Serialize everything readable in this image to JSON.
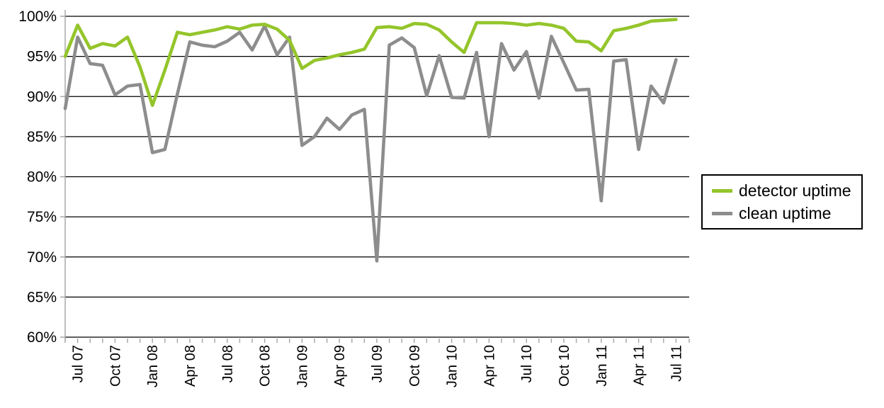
{
  "chart_data": {
    "type": "line",
    "title": "",
    "xlabel": "",
    "ylabel": "",
    "ylim": [
      60,
      100
    ],
    "ytick_step": 5,
    "ytick_labels": [
      "100%",
      "95%",
      "90%",
      "85%",
      "80%",
      "75%",
      "70%",
      "65%",
      "60%"
    ],
    "grid": "horizontal",
    "legend_position": "right",
    "x_label_start_index": 1,
    "x_label_every": 3,
    "visible_x_labels": [
      "Jul 07",
      "Oct 07",
      "Jan 08",
      "Apr 08",
      "Jul 08",
      "Oct 08",
      "Jan 09",
      "Apr 09",
      "Jul 09",
      "Oct 09",
      "Jan 10",
      "Apr 10",
      "Jul 10",
      "Oct 10",
      "Jan 11",
      "Apr 11",
      "Jul 11"
    ],
    "categories": [
      "Jun 07",
      "Jul 07",
      "Aug 07",
      "Sep 07",
      "Oct 07",
      "Nov 07",
      "Dec 07",
      "Jan 08",
      "Feb 08",
      "Mar 08",
      "Apr 08",
      "May 08",
      "Jun 08",
      "Jul 08",
      "Aug 08",
      "Sep 08",
      "Oct 08",
      "Nov 08",
      "Dec 08",
      "Jan 09",
      "Feb 09",
      "Mar 09",
      "Apr 09",
      "May 09",
      "Jun 09",
      "Jul 09",
      "Aug 09",
      "Sep 09",
      "Oct 09",
      "Nov 09",
      "Dec 09",
      "Jan 10",
      "Feb 10",
      "Mar 10",
      "Apr 10",
      "May 10",
      "Jun 10",
      "Jul 10",
      "Aug 10",
      "Sep 10",
      "Oct 10",
      "Nov 10",
      "Dec 10",
      "Jan 11",
      "Feb 11",
      "Mar 11",
      "Apr 11",
      "May 11",
      "Jun 11",
      "Jul 11"
    ],
    "series": [
      {
        "name": "clean uptime",
        "color": "#8d8d8d",
        "values": [
          88.5,
          97.4,
          94.1,
          93.9,
          90.2,
          91.3,
          91.5,
          83.0,
          83.4,
          90.3,
          96.8,
          96.4,
          96.2,
          96.9,
          98.0,
          95.8,
          98.8,
          95.2,
          97.4,
          83.9,
          85.0,
          87.3,
          85.9,
          87.7,
          88.4,
          69.5,
          96.4,
          97.3,
          96.1,
          90.1,
          95.1,
          89.9,
          89.8,
          95.5,
          85.0,
          96.6,
          93.3,
          95.6,
          89.8,
          97.5,
          94.2,
          90.8,
          90.9,
          77.0,
          94.4,
          94.6,
          83.4,
          91.3,
          89.2,
          94.6
        ]
      },
      {
        "name": "detector uptime",
        "color": "#94c52b",
        "values": [
          95.0,
          98.9,
          96.0,
          96.6,
          96.3,
          97.4,
          93.7,
          88.9,
          93.3,
          98.0,
          97.7,
          98.0,
          98.3,
          98.7,
          98.4,
          98.9,
          99.0,
          98.4,
          97.0,
          93.5,
          94.5,
          94.8,
          95.2,
          95.5,
          95.9,
          98.6,
          98.7,
          98.5,
          99.1,
          99.0,
          98.3,
          96.8,
          95.5,
          99.2,
          99.2,
          99.2,
          99.1,
          98.9,
          99.1,
          98.9,
          98.5,
          96.9,
          96.8,
          95.7,
          98.2,
          98.5,
          98.9,
          99.4,
          99.5,
          99.6
        ]
      }
    ],
    "legend_order": [
      "detector uptime",
      "clean uptime"
    ],
    "colors": {
      "gridline": "#000000",
      "axis": "#a3a3a3",
      "text": "#000000",
      "background": "#ffffff"
    }
  }
}
